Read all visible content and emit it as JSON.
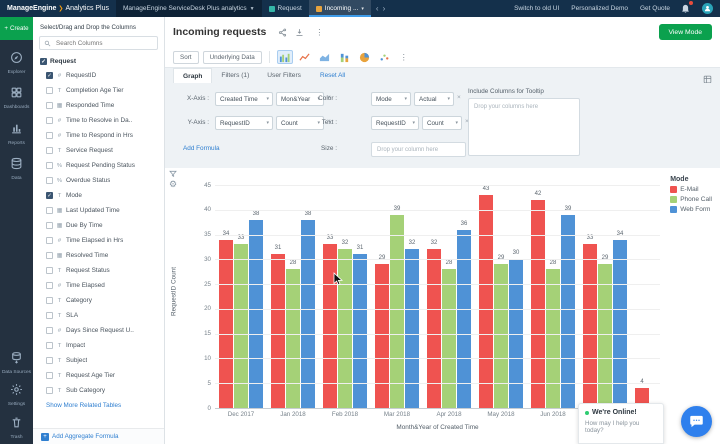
{
  "topbar": {
    "brand": "ManageEngine",
    "product": "Analytics Plus",
    "workspace": "ManageEngine ServiceDesk Plus analytics",
    "tab_request": "Request",
    "tab_incoming": "Incoming ...",
    "link_switch": "Switch to old UI",
    "link_demo": "Personalized Demo",
    "link_quote": "Get Quote"
  },
  "rail": {
    "create": "Create",
    "items": [
      {
        "label": "Explorer",
        "icon": "compass-icon"
      },
      {
        "label": "Dashboards",
        "icon": "dashboard-icon"
      },
      {
        "label": "Reports",
        "icon": "reports-icon"
      },
      {
        "label": "Data",
        "icon": "database-icon"
      }
    ],
    "bottom": [
      {
        "label": "Data Sources",
        "icon": "data-sources-icon"
      },
      {
        "label": "Settings",
        "icon": "gear-icon"
      },
      {
        "label": "Trash",
        "icon": "trash-icon"
      }
    ]
  },
  "columns_panel": {
    "title": "Select/Drag and Drop the Columns",
    "search_placeholder": "Search Columns",
    "table": {
      "label": "Request",
      "checked": true
    },
    "items": [
      {
        "label": "RequestID",
        "type": "num",
        "checked": true
      },
      {
        "label": "Completion Age Tier",
        "type": "text",
        "checked": false
      },
      {
        "label": "Responded Time",
        "type": "date",
        "checked": false
      },
      {
        "label": "Time to Resolve in Da..",
        "type": "num",
        "checked": false
      },
      {
        "label": "Time to Respond in Hrs",
        "type": "num",
        "checked": false
      },
      {
        "label": "Service Request",
        "type": "text",
        "checked": false
      },
      {
        "label": "Request Pending Status",
        "type": "pct",
        "checked": false
      },
      {
        "label": "Overdue Status",
        "type": "pct",
        "checked": false
      },
      {
        "label": "Mode",
        "type": "text",
        "checked": true
      },
      {
        "label": "Last Updated Time",
        "type": "date",
        "checked": false
      },
      {
        "label": "Due By Time",
        "type": "date",
        "checked": false
      },
      {
        "label": "Time Elapsed in Hrs",
        "type": "num",
        "checked": false
      },
      {
        "label": "Resolved Time",
        "type": "date",
        "checked": false
      },
      {
        "label": "Request Status",
        "type": "text",
        "checked": false
      },
      {
        "label": "Time Elapsed",
        "type": "num",
        "checked": false
      },
      {
        "label": "Category",
        "type": "text",
        "checked": false
      },
      {
        "label": "SLA",
        "type": "text",
        "checked": false
      },
      {
        "label": "Days Since Request U..",
        "type": "num",
        "checked": false
      },
      {
        "label": "Impact",
        "type": "text",
        "checked": false
      },
      {
        "label": "Subject",
        "type": "text",
        "checked": false
      },
      {
        "label": "Request Age Tier",
        "type": "text",
        "checked": false
      },
      {
        "label": "Sub Category",
        "type": "text",
        "checked": false
      },
      {
        "label": "Days Since Request U..",
        "type": "num",
        "checked": false
      }
    ],
    "show_more": "Show More Related Tables",
    "add_aggregate": "Add Aggregate Formula"
  },
  "report": {
    "title": "Incoming requests",
    "view_mode": "View Mode",
    "sort": "Sort",
    "underlying_data": "Underlying Data",
    "tabs": {
      "graph": "Graph",
      "filters": "Filters (1)",
      "user_filters": "User Filters",
      "reset": "Reset All"
    },
    "config": {
      "x_label": "X-Axis :",
      "x_field": "Created Time",
      "x_fn": "Mon&Year",
      "y_label": "Y-Axis :",
      "y_field": "RequestID",
      "y_fn": "Count",
      "color_label": "Color :",
      "color_field": "Mode",
      "color_fn": "Actual",
      "text_label": "Text :",
      "text_field": "RequestID",
      "text_fn": "Count",
      "size_label": "Size :",
      "size_placeholder": "Drop your column here",
      "tooltip_title": "Include Columns for Tooltip",
      "tooltip_placeholder": "Drop your columns here",
      "add_formula": "Add Formula"
    }
  },
  "chart_data": {
    "type": "bar",
    "title": "",
    "xlabel": "Month&Year of Created Time",
    "ylabel": "RequestID Count",
    "ylim": [
      0,
      45
    ],
    "grid": true,
    "legend_title": "Mode",
    "legend_position": "right",
    "categories": [
      "Dec 2017",
      "Jan 2018",
      "Feb 2018",
      "Mar 2018",
      "Apr 2018",
      "May 2018",
      "Jun 2018",
      "Jul 2018",
      "Aug 2018"
    ],
    "series": [
      {
        "name": "E-Mail",
        "color": "#ef5350",
        "values": [
          34,
          31,
          33,
          29,
          32,
          43,
          42,
          33,
          4
        ]
      },
      {
        "name": "Phone Call",
        "color": "#a5d177",
        "values": [
          33,
          28,
          32,
          39,
          28,
          29,
          28,
          29,
          null
        ]
      },
      {
        "name": "Web Form",
        "color": "#4f92d6",
        "values": [
          38,
          38,
          31,
          32,
          36,
          30,
          39,
          34,
          null
        ]
      }
    ]
  },
  "chat": {
    "status": "We're Online!",
    "prompt": "How may I help you today?"
  }
}
